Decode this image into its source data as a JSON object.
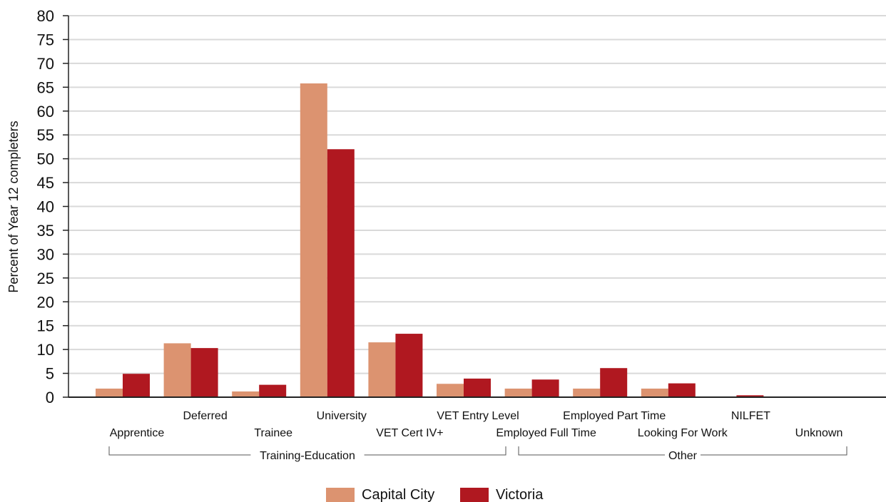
{
  "chart_data": {
    "type": "bar",
    "ylabel": "Percent of Year 12 completers",
    "xlabel": "",
    "ylim": [
      0,
      80
    ],
    "yticks": [
      0,
      5,
      10,
      15,
      20,
      25,
      30,
      35,
      40,
      45,
      50,
      55,
      60,
      65,
      70,
      75,
      80
    ],
    "grid": true,
    "legend_position": "bottom",
    "categories": [
      "Apprentice",
      "Deferred",
      "Trainee",
      "University",
      "VET Cert IV+",
      "VET Entry Level",
      "Employed Full Time",
      "Employed Part Time",
      "Looking For Work",
      "NILFET",
      "Unknown"
    ],
    "groups": [
      {
        "label": "Training-Education",
        "categories": [
          "Apprentice",
          "Deferred",
          "Trainee",
          "University",
          "VET Cert IV+",
          "VET Entry Level"
        ]
      },
      {
        "label": "Other",
        "categories": [
          "Employed Full Time",
          "Employed Part Time",
          "Looking For Work",
          "NILFET",
          "Unknown"
        ]
      }
    ],
    "series": [
      {
        "name": "Capital City",
        "color": "#dc9370",
        "values": [
          1.8,
          11.3,
          1.2,
          65.8,
          11.5,
          2.8,
          1.8,
          1.8,
          1.8,
          0,
          0
        ]
      },
      {
        "name": "Victoria",
        "color": "#b01820",
        "values": [
          4.9,
          10.3,
          2.6,
          52.0,
          13.3,
          3.9,
          3.7,
          6.1,
          2.9,
          0.4,
          0.1
        ]
      }
    ]
  }
}
